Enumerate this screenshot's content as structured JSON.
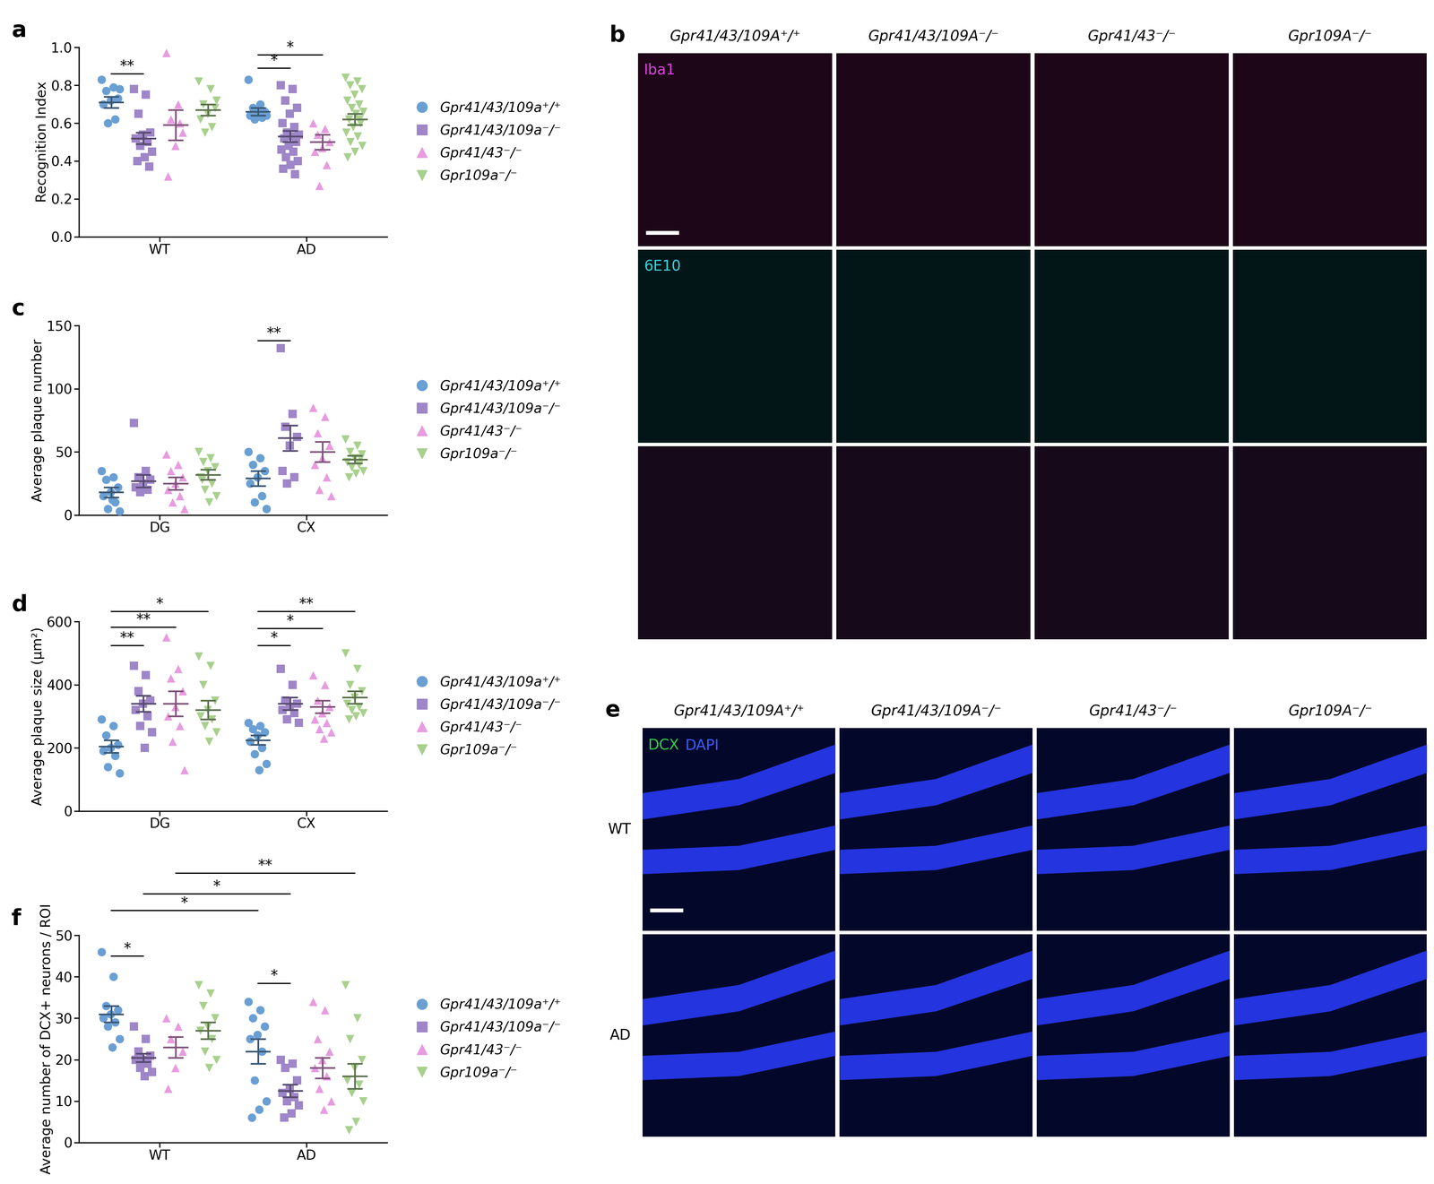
{
  "chart_data": [
    {
      "type": "scatter",
      "panel": "a",
      "y_label": "Recognition Index",
      "categories": [
        "WT",
        "AD"
      ],
      "legend": "right",
      "ylim": [
        0,
        1
      ],
      "yticks": [
        {
          "value": 0,
          "label": "0.0"
        },
        0.2,
        0.4,
        0.6,
        0.8,
        {
          "value": 1,
          "label": "1.0"
        }
      ],
      "series": [
        {
          "name": "Gpr41/43/109a⁺/⁺",
          "color": "#6a9fd4",
          "marker": "circle",
          "values": [
            [
              0.83,
              0.79,
              0.77,
              0.73,
              0.72,
              0.7,
              0.62,
              0.6,
              0.78
            ],
            [
              0.83,
              0.7,
              0.68,
              0.66,
              0.65,
              0.64,
              0.63,
              0.62,
              0.64,
              0.66
            ]
          ],
          "mean": [
            0.71,
            0.66
          ],
          "sem": [
            0.03,
            0.02
          ]
        },
        {
          "name": "Gpr41/43/109a⁻/⁻",
          "color": "#9e86c8",
          "marker": "square",
          "values": [
            [
              0.78,
              0.75,
              0.65,
              0.55,
              0.54,
              0.52,
              0.5,
              0.48,
              0.45,
              0.42,
              0.4,
              0.37,
              0.53
            ],
            [
              0.8,
              0.78,
              0.72,
              0.68,
              0.65,
              0.6,
              0.58,
              0.55,
              0.54,
              0.53,
              0.52,
              0.5,
              0.48,
              0.46,
              0.45,
              0.42,
              0.4,
              0.38,
              0.36,
              0.33
            ]
          ],
          "mean": [
            0.52,
            0.53
          ],
          "sem": [
            0.03,
            0.03
          ]
        },
        {
          "name": "Gpr41/43⁻/⁻",
          "color": "#e89be0",
          "marker": "triangle_up",
          "values": [
            [
              0.97,
              0.7,
              0.62,
              0.55,
              0.48,
              0.32,
              0.6
            ],
            [
              0.6,
              0.57,
              0.54,
              0.5,
              0.47,
              0.45,
              0.38,
              0.27
            ]
          ],
          "mean": [
            0.59,
            0.5
          ],
          "sem": [
            0.08,
            0.04
          ]
        },
        {
          "name": "Gpr109a⁻/⁻",
          "color": "#a8d08d",
          "marker": "triangle_down",
          "values": [
            [
              0.82,
              0.78,
              0.7,
              0.68,
              0.65,
              0.62,
              0.58,
              0.55,
              0.72
            ],
            [
              0.84,
              0.82,
              0.8,
              0.78,
              0.75,
              0.72,
              0.7,
              0.68,
              0.66,
              0.65,
              0.62,
              0.6,
              0.58,
              0.55,
              0.53,
              0.5,
              0.48,
              0.45,
              0.42,
              0.62
            ]
          ],
          "mean": [
            0.67,
            0.62
          ],
          "sem": [
            0.03,
            0.03
          ]
        }
      ],
      "significance": [
        {
          "from": [
            "WT",
            0
          ],
          "to": [
            "WT",
            1
          ],
          "y": 0.86,
          "label": "**"
        },
        {
          "from": [
            "AD",
            0
          ],
          "to": [
            "AD",
            1
          ],
          "y": 0.89,
          "label": "*"
        },
        {
          "from": [
            "AD",
            0
          ],
          "to": [
            "AD",
            2
          ],
          "y": 0.96,
          "label": "*"
        }
      ]
    },
    {
      "type": "scatter",
      "panel": "c",
      "y_label": "Average plaque number",
      "categories": [
        "DG",
        "CX"
      ],
      "legend": "right",
      "ylim": [
        0,
        150
      ],
      "yticks": [
        0,
        50,
        100,
        150
      ],
      "series": [
        {
          "name": "Gpr41/43/109a⁺/⁺",
          "color": "#6a9fd4",
          "marker": "circle",
          "values": [
            [
              35,
              30,
              28,
              22,
              18,
              15,
              10,
              5,
              3,
              12
            ],
            [
              50,
              45,
              40,
              35,
              30,
              25,
              15,
              10,
              5
            ]
          ],
          "mean": [
            18,
            29
          ],
          "sem": [
            4,
            6
          ]
        },
        {
          "name": "Gpr41/43/109a⁻/⁻",
          "color": "#9e86c8",
          "marker": "square",
          "values": [
            [
              73,
              35,
              30,
              28,
              25,
              22,
              20,
              18
            ],
            [
              132,
              80,
              70,
              62,
              55,
              35,
              30,
              25
            ]
          ],
          "mean": [
            27,
            61
          ],
          "sem": [
            5,
            10
          ]
        },
        {
          "name": "Gpr41/43⁻/⁻",
          "color": "#e89be0",
          "marker": "triangle_up",
          "values": [
            [
              48,
              40,
              35,
              30,
              25,
              20,
              15,
              10,
              5
            ],
            [
              85,
              78,
              65,
              55,
              45,
              40,
              30,
              20,
              15
            ]
          ],
          "mean": [
            25,
            50
          ],
          "sem": [
            5,
            8
          ]
        },
        {
          "name": "Gpr109a⁻/⁻",
          "color": "#a8d08d",
          "marker": "triangle_down",
          "values": [
            [
              50,
              45,
              42,
              38,
              35,
              30,
              25,
              20,
              15,
              10,
              28
            ],
            [
              60,
              55,
              50,
              48,
              45,
              42,
              40,
              38,
              35,
              33,
              30,
              45
            ]
          ],
          "mean": [
            32,
            44
          ],
          "sem": [
            4,
            3
          ]
        }
      ],
      "significance": [
        {
          "from": [
            "CX",
            0
          ],
          "to": [
            "CX",
            1
          ],
          "y": 138,
          "label": "**"
        }
      ]
    },
    {
      "type": "scatter",
      "panel": "d",
      "y_label": "Average plaque size (μm²)",
      "categories": [
        "DG",
        "CX"
      ],
      "legend": "right",
      "ylim": [
        0,
        600
      ],
      "yticks": [
        0,
        200,
        400,
        600
      ],
      "series": [
        {
          "name": "Gpr41/43/109a⁺/⁺",
          "color": "#6a9fd4",
          "marker": "circle",
          "values": [
            [
              290,
              270,
              240,
              210,
              200,
              190,
              175,
              140,
              120
            ],
            [
              280,
              270,
              260,
              250,
              240,
              220,
              200,
              180,
              150,
              130
            ]
          ],
          "mean": [
            205,
            225
          ],
          "sem": [
            20,
            15
          ]
        },
        {
          "name": "Gpr41/43/109a⁻/⁻",
          "color": "#9e86c8",
          "marker": "square",
          "values": [
            [
              460,
              430,
              380,
              350,
              340,
              320,
              300,
              270,
              250,
              200
            ],
            [
              450,
              400,
              350,
              340,
              330,
              320,
              310,
              290,
              280
            ]
          ],
          "mean": [
            340,
            340
          ],
          "sem": [
            25,
            20
          ]
        },
        {
          "name": "Gpr41/43⁻/⁻",
          "color": "#e89be0",
          "marker": "triangle_up",
          "values": [
            [
              550,
              450,
              420,
              380,
              330,
              300,
              270,
              220,
              130
            ],
            [
              430,
              400,
              350,
              330,
              310,
              290,
              280,
              260,
              250,
              230
            ]
          ],
          "mean": [
            340,
            330
          ],
          "sem": [
            40,
            20
          ]
        },
        {
          "name": "Gpr109a⁻/⁻",
          "color": "#a8d08d",
          "marker": "triangle_down",
          "values": [
            [
              490,
              460,
              400,
              350,
              320,
              300,
              290,
              270,
              250,
              220
            ],
            [
              500,
              450,
              400,
              380,
              360,
              340,
              330,
              320,
              310,
              300,
              290
            ]
          ],
          "mean": [
            320,
            360
          ],
          "sem": [
            30,
            20
          ]
        }
      ],
      "significance": [
        {
          "from": [
            "DG",
            0
          ],
          "to": [
            "DG",
            1
          ],
          "y": 524,
          "label": "**"
        },
        {
          "from": [
            "DG",
            0
          ],
          "to": [
            "DG",
            2
          ],
          "y": 582,
          "label": "**"
        },
        {
          "from": [
            "DG",
            0
          ],
          "to": [
            "DG",
            3
          ],
          "y": 632,
          "label": "*"
        },
        {
          "from": [
            "CX",
            0
          ],
          "to": [
            "CX",
            1
          ],
          "y": 524,
          "label": "*"
        },
        {
          "from": [
            "CX",
            0
          ],
          "to": [
            "CX",
            2
          ],
          "y": 578,
          "label": "*"
        },
        {
          "from": [
            "CX",
            0
          ],
          "to": [
            "CX",
            3
          ],
          "y": 632,
          "label": "**"
        }
      ]
    },
    {
      "type": "scatter",
      "panel": "f",
      "y_label": "Average number of DCX+ neurons / ROI",
      "categories": [
        "WT",
        "AD"
      ],
      "legend": "right",
      "ylim": [
        0,
        50
      ],
      "yticks": [
        0,
        10,
        20,
        30,
        40,
        50
      ],
      "series": [
        {
          "name": "Gpr41/43/109a⁺/⁺",
          "color": "#6a9fd4",
          "marker": "circle",
          "values": [
            [
              46,
              40,
              33,
              32,
              31,
              30,
              29,
              28,
              25,
              23
            ],
            [
              34,
              32,
              30,
              28,
              26,
              25,
              22,
              15,
              10,
              8,
              6
            ]
          ],
          "mean": [
            31,
            22
          ],
          "sem": [
            2,
            3
          ]
        },
        {
          "name": "Gpr41/43/109a⁻/⁻",
          "color": "#9e86c8",
          "marker": "square",
          "values": [
            [
              28,
              25,
              22,
              21,
              20,
              20,
              19,
              18,
              17,
              16
            ],
            [
              20,
              19,
              18,
              15,
              13,
              12,
              11,
              10,
              9,
              7,
              6
            ]
          ],
          "mean": [
            20.5,
            12.5
          ],
          "sem": [
            1,
            1.5
          ]
        },
        {
          "name": "Gpr41/43⁻/⁻",
          "color": "#e89be0",
          "marker": "triangle_up",
          "values": [
            [
              30,
              28,
              25,
              22,
              18,
              13
            ],
            [
              34,
              32,
              25,
              22,
              20,
              18,
              16,
              13,
              10,
              8
            ]
          ],
          "mean": [
            23,
            18
          ],
          "sem": [
            2.5,
            2.5
          ]
        },
        {
          "name": "Gpr109a⁻/⁻",
          "color": "#a8d08d",
          "marker": "triangle_down",
          "values": [
            [
              38,
              36,
              33,
              30,
              28,
              27,
              25,
              22,
              20,
              18
            ],
            [
              38,
              30,
              25,
              20,
              18,
              15,
              14,
              12,
              10,
              5,
              3
            ]
          ],
          "mean": [
            27,
            16
          ],
          "sem": [
            2,
            3
          ]
        }
      ],
      "significance": [
        {
          "from": [
            "WT",
            0
          ],
          "to": [
            "WT",
            1
          ],
          "y": 45,
          "label": "*"
        },
        {
          "from": [
            "AD",
            0
          ],
          "to": [
            "AD",
            1
          ],
          "y": 38.4,
          "label": "*"
        },
        {
          "from": [
            "WT",
            0
          ],
          "to": [
            "AD",
            0
          ],
          "y": 56,
          "label": "*"
        },
        {
          "from": [
            "WT",
            1
          ],
          "to": [
            "AD",
            1
          ],
          "y": 60,
          "label": "*"
        },
        {
          "from": [
            "WT",
            2
          ],
          "to": [
            "AD",
            3
          ],
          "y": 65,
          "label": "**"
        }
      ]
    }
  ],
  "image_panels": [
    {
      "panel": "b",
      "columns": [
        "Gpr41/43/109A⁺/⁺",
        "Gpr41/43/109A⁻/⁻",
        "Gpr41/43⁻/⁻",
        "Gpr109A⁻/⁻"
      ],
      "channels": [
        {
          "label": "Iba1",
          "color": "#e040e0"
        },
        {
          "label": "6E10",
          "color": "#30d8e0"
        }
      ]
    },
    {
      "panel": "e",
      "columns": [
        "Gpr41/43/109A⁺/⁺",
        "Gpr41/43/109A⁻/⁻",
        "Gpr41/43⁻/⁻",
        "Gpr109A⁻/⁻"
      ],
      "rows": [
        "WT",
        "AD"
      ],
      "stain": [
        {
          "label": "DCX",
          "color": "#30d040"
        },
        {
          "label": "DAPI",
          "color": "#3a5cff"
        }
      ]
    }
  ]
}
